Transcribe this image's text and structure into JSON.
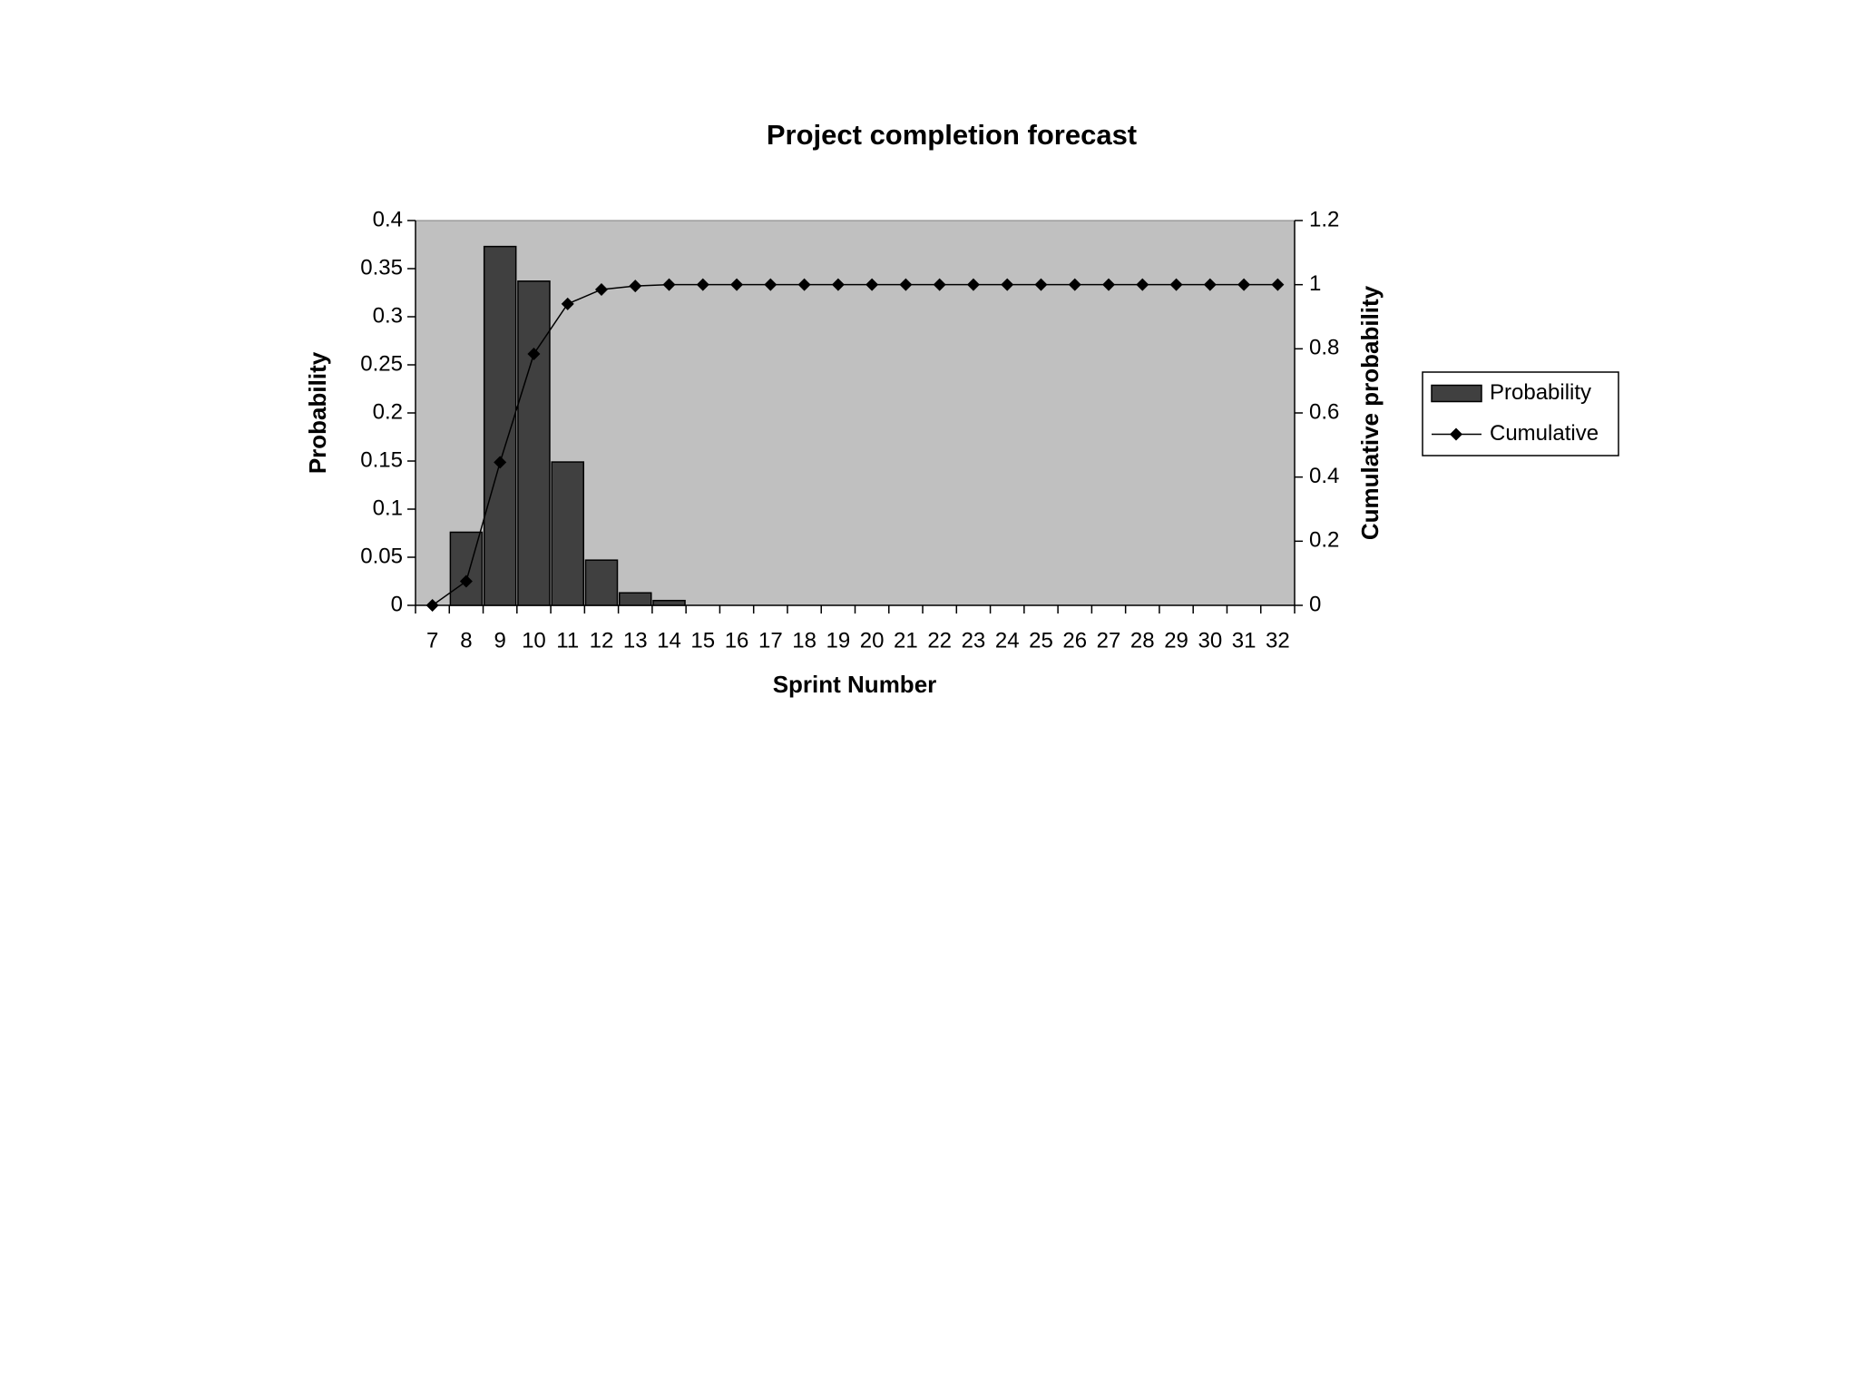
{
  "chart_data": {
    "type": "combo",
    "title": "Project completion forecast",
    "x_label": "Sprint Number",
    "y_label": "Probability",
    "y2_label": "Cumulative probability",
    "categories": [
      7,
      8,
      9,
      10,
      11,
      12,
      13,
      14,
      15,
      16,
      17,
      18,
      19,
      20,
      21,
      22,
      23,
      24,
      25,
      26,
      27,
      28,
      29,
      30,
      31,
      32
    ],
    "series": [
      {
        "name": "Probability",
        "type": "bar",
        "color": "#404040",
        "values": [
          0,
          0.076,
          0.373,
          0.337,
          0.149,
          0.047,
          0.013,
          0.005,
          0,
          0,
          0,
          0,
          0,
          0,
          0,
          0,
          0,
          0,
          0,
          0,
          0,
          0,
          0,
          0,
          0,
          0
        ]
      },
      {
        "name": "Cumulative",
        "type": "line",
        "axis": "y2",
        "color": "#000000",
        "values": [
          0,
          0.075,
          0.446,
          0.784,
          0.94,
          0.985,
          0.996,
          1,
          1,
          1,
          1,
          1,
          1,
          1,
          1,
          1,
          1,
          1,
          1,
          1,
          1,
          1,
          1,
          1,
          1,
          1
        ]
      }
    ],
    "ylim": [
      0,
      0.4
    ],
    "yticks": [
      0,
      0.05,
      0.1,
      0.15,
      0.2,
      0.25,
      0.3,
      0.35,
      0.4
    ],
    "y2lim": [
      0,
      1.2
    ],
    "y2ticks": [
      0,
      0.2,
      0.4,
      0.6,
      0.8,
      1,
      1.2
    ],
    "grid": false,
    "legend": "right",
    "plot_background": "#c0c0c0"
  }
}
